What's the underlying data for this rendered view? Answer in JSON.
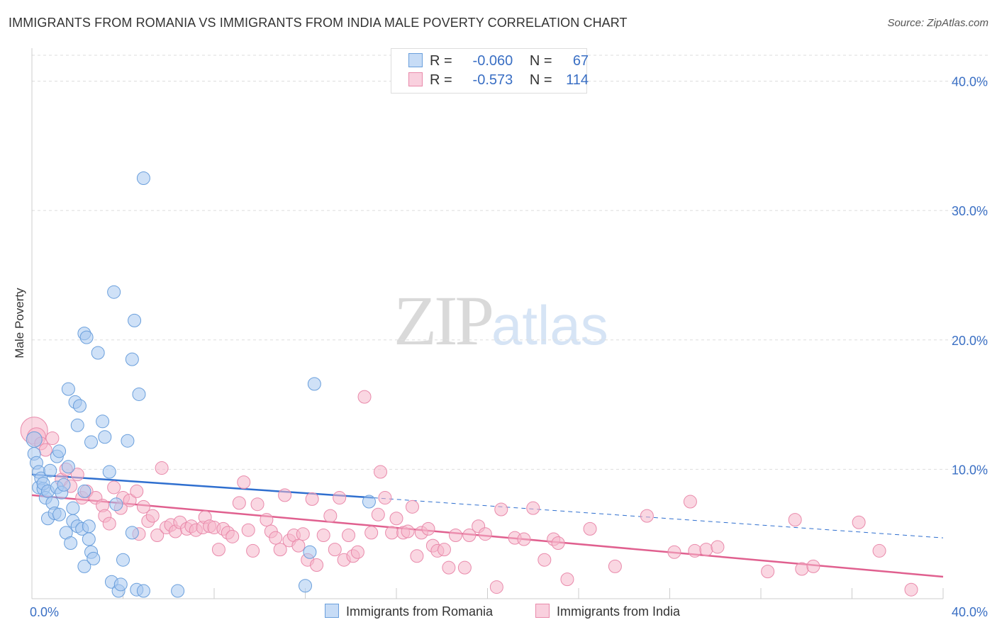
{
  "title": "IMMIGRANTS FROM ROMANIA VS IMMIGRANTS FROM INDIA MALE POVERTY CORRELATION CHART",
  "source": "Source: ZipAtlas.com",
  "watermark": {
    "zip": "ZIP",
    "atlas": "atlas"
  },
  "legend": {
    "romania": {
      "r_label": "R =",
      "r_value": "-0.060",
      "n_label": "N =",
      "n_value": "67"
    },
    "india": {
      "r_label": "R =",
      "r_value": "-0.573",
      "n_label": "N =",
      "n_value": "114"
    }
  },
  "colors": {
    "romania_fill": "#a8c8f0",
    "romania_stroke": "#6a9fdc",
    "romania_line": "#2f6fcf",
    "india_fill": "#f5b6cb",
    "india_stroke": "#e98aab",
    "india_line": "#e0608f",
    "grid": "#dddddd",
    "tick_label": "#3a6fc4"
  },
  "chart_data": {
    "type": "scatter",
    "title": "IMMIGRANTS FROM ROMANIA VS IMMIGRANTS FROM INDIA MALE POVERTY CORRELATION CHART",
    "xlabel": "",
    "ylabel": "Male Poverty",
    "xlim": [
      0,
      40
    ],
    "ylim": [
      0,
      42
    ],
    "x_tick_labels": [
      "0.0%",
      "40.0%"
    ],
    "y_ticks": [
      10,
      20,
      30,
      40
    ],
    "y_tick_labels": [
      "10.0%",
      "20.0%",
      "30.0%",
      "40.0%"
    ],
    "legend_position": "top-center",
    "series": [
      {
        "name": "Immigrants from Romania",
        "r": -0.06,
        "n": 67,
        "trend": {
          "x0": 0,
          "y0": 9.6,
          "x1": 15,
          "y1": 7.8,
          "dashed_to_x": 40,
          "dashed_to_y": 4.7
        },
        "points": [
          [
            0.1,
            12.3
          ],
          [
            0.1,
            11.2
          ],
          [
            0.2,
            10.5
          ],
          [
            0.3,
            9.8
          ],
          [
            0.3,
            8.6
          ],
          [
            0.4,
            9.3
          ],
          [
            0.5,
            8.5
          ],
          [
            0.5,
            8.9
          ],
          [
            0.6,
            7.8
          ],
          [
            0.7,
            8.3
          ],
          [
            0.7,
            6.2
          ],
          [
            0.8,
            9.9
          ],
          [
            0.9,
            7.4
          ],
          [
            1.0,
            6.6
          ],
          [
            1.1,
            11.0
          ],
          [
            1.1,
            8.6
          ],
          [
            1.2,
            6.5
          ],
          [
            1.2,
            11.4
          ],
          [
            1.3,
            8.2
          ],
          [
            1.4,
            8.8
          ],
          [
            1.5,
            5.1
          ],
          [
            1.6,
            16.2
          ],
          [
            1.6,
            10.2
          ],
          [
            1.7,
            4.3
          ],
          [
            1.8,
            7.0
          ],
          [
            1.8,
            6.0
          ],
          [
            1.9,
            15.2
          ],
          [
            2.0,
            5.6
          ],
          [
            2.0,
            13.4
          ],
          [
            2.1,
            14.9
          ],
          [
            2.2,
            5.4
          ],
          [
            2.3,
            8.3
          ],
          [
            2.3,
            2.5
          ],
          [
            2.3,
            20.5
          ],
          [
            2.4,
            20.2
          ],
          [
            2.5,
            4.6
          ],
          [
            2.5,
            5.6
          ],
          [
            2.6,
            3.6
          ],
          [
            2.6,
            12.1
          ],
          [
            2.7,
            3.1
          ],
          [
            2.9,
            19.0
          ],
          [
            3.1,
            13.7
          ],
          [
            3.2,
            12.5
          ],
          [
            3.4,
            9.8
          ],
          [
            3.5,
            1.3
          ],
          [
            3.6,
            23.7
          ],
          [
            3.7,
            7.3
          ],
          [
            3.8,
            0.6
          ],
          [
            3.9,
            1.1
          ],
          [
            4.0,
            3.0
          ],
          [
            4.2,
            12.2
          ],
          [
            4.4,
            18.5
          ],
          [
            4.4,
            5.1
          ],
          [
            4.5,
            21.5
          ],
          [
            4.6,
            0.7
          ],
          [
            4.7,
            15.8
          ],
          [
            4.9,
            0.6
          ],
          [
            4.9,
            32.5
          ],
          [
            6.4,
            0.6
          ],
          [
            12.4,
            16.6
          ],
          [
            12.2,
            3.6
          ],
          [
            12.0,
            1.0
          ],
          [
            14.8,
            7.5
          ]
        ]
      },
      {
        "name": "Immigrants from India",
        "r": -0.573,
        "n": 114,
        "trend": {
          "x0": 0,
          "y0": 8.0,
          "x1": 40,
          "y1": 1.7
        },
        "points": [
          [
            0.1,
            13.0
          ],
          [
            0.2,
            12.5
          ],
          [
            0.4,
            12.0
          ],
          [
            0.6,
            11.5
          ],
          [
            0.9,
            12.4
          ],
          [
            1.3,
            9.2
          ],
          [
            1.5,
            10.0
          ],
          [
            1.7,
            8.7
          ],
          [
            2.0,
            9.6
          ],
          [
            2.2,
            7.8
          ],
          [
            2.4,
            8.3
          ],
          [
            2.8,
            7.8
          ],
          [
            3.1,
            7.2
          ],
          [
            3.2,
            6.4
          ],
          [
            3.4,
            5.8
          ],
          [
            3.6,
            8.6
          ],
          [
            3.9,
            7.0
          ],
          [
            4.0,
            7.8
          ],
          [
            4.3,
            7.6
          ],
          [
            4.6,
            8.3
          ],
          [
            4.7,
            5.0
          ],
          [
            4.9,
            7.1
          ],
          [
            5.1,
            6.0
          ],
          [
            5.3,
            6.4
          ],
          [
            5.5,
            4.9
          ],
          [
            5.7,
            10.1
          ],
          [
            5.9,
            5.5
          ],
          [
            6.1,
            5.7
          ],
          [
            6.3,
            5.2
          ],
          [
            6.5,
            5.9
          ],
          [
            6.8,
            5.4
          ],
          [
            7.0,
            5.6
          ],
          [
            7.2,
            5.3
          ],
          [
            7.5,
            5.5
          ],
          [
            7.6,
            6.3
          ],
          [
            7.8,
            5.6
          ],
          [
            8.0,
            5.5
          ],
          [
            8.2,
            3.8
          ],
          [
            8.4,
            5.4
          ],
          [
            8.6,
            5.1
          ],
          [
            8.8,
            4.8
          ],
          [
            9.1,
            7.4
          ],
          [
            9.3,
            9.0
          ],
          [
            9.5,
            5.3
          ],
          [
            9.7,
            3.7
          ],
          [
            9.9,
            7.3
          ],
          [
            10.3,
            6.1
          ],
          [
            10.5,
            5.2
          ],
          [
            10.7,
            4.7
          ],
          [
            10.9,
            3.8
          ],
          [
            11.1,
            8.0
          ],
          [
            11.3,
            4.5
          ],
          [
            11.5,
            4.9
          ],
          [
            11.7,
            4.1
          ],
          [
            11.9,
            5.0
          ],
          [
            12.1,
            3.0
          ],
          [
            12.3,
            7.7
          ],
          [
            12.5,
            2.6
          ],
          [
            12.8,
            4.9
          ],
          [
            13.1,
            6.4
          ],
          [
            13.3,
            3.8
          ],
          [
            13.5,
            7.8
          ],
          [
            13.7,
            3.0
          ],
          [
            13.9,
            4.9
          ],
          [
            14.1,
            3.3
          ],
          [
            14.3,
            3.6
          ],
          [
            14.6,
            15.6
          ],
          [
            14.9,
            5.1
          ],
          [
            15.2,
            6.5
          ],
          [
            15.3,
            9.8
          ],
          [
            15.5,
            7.8
          ],
          [
            15.8,
            5.1
          ],
          [
            16.0,
            6.2
          ],
          [
            16.3,
            5.1
          ],
          [
            16.5,
            5.2
          ],
          [
            16.7,
            7.1
          ],
          [
            16.9,
            3.3
          ],
          [
            17.1,
            5.1
          ],
          [
            17.4,
            5.4
          ],
          [
            17.6,
            4.1
          ],
          [
            17.8,
            3.7
          ],
          [
            18.1,
            3.8
          ],
          [
            18.3,
            2.4
          ],
          [
            18.6,
            4.9
          ],
          [
            19.0,
            2.4
          ],
          [
            19.2,
            4.9
          ],
          [
            19.6,
            5.6
          ],
          [
            19.9,
            5.0
          ],
          [
            20.4,
            0.9
          ],
          [
            20.6,
            6.9
          ],
          [
            21.2,
            4.7
          ],
          [
            21.6,
            4.6
          ],
          [
            22.0,
            7.0
          ],
          [
            22.5,
            3.0
          ],
          [
            22.9,
            4.6
          ],
          [
            23.1,
            4.3
          ],
          [
            23.5,
            1.5
          ],
          [
            24.5,
            5.4
          ],
          [
            25.6,
            2.5
          ],
          [
            27.0,
            6.4
          ],
          [
            28.2,
            3.6
          ],
          [
            28.9,
            7.5
          ],
          [
            29.1,
            3.7
          ],
          [
            29.6,
            3.8
          ],
          [
            30.1,
            4.0
          ],
          [
            32.3,
            2.1
          ],
          [
            33.5,
            6.1
          ],
          [
            33.8,
            2.3
          ],
          [
            34.3,
            2.5
          ],
          [
            36.3,
            5.9
          ],
          [
            37.2,
            3.7
          ],
          [
            38.6,
            0.7
          ]
        ]
      }
    ]
  },
  "bottom_legend": {
    "romania": "Immigrants from Romania",
    "india": "Immigrants from India"
  }
}
